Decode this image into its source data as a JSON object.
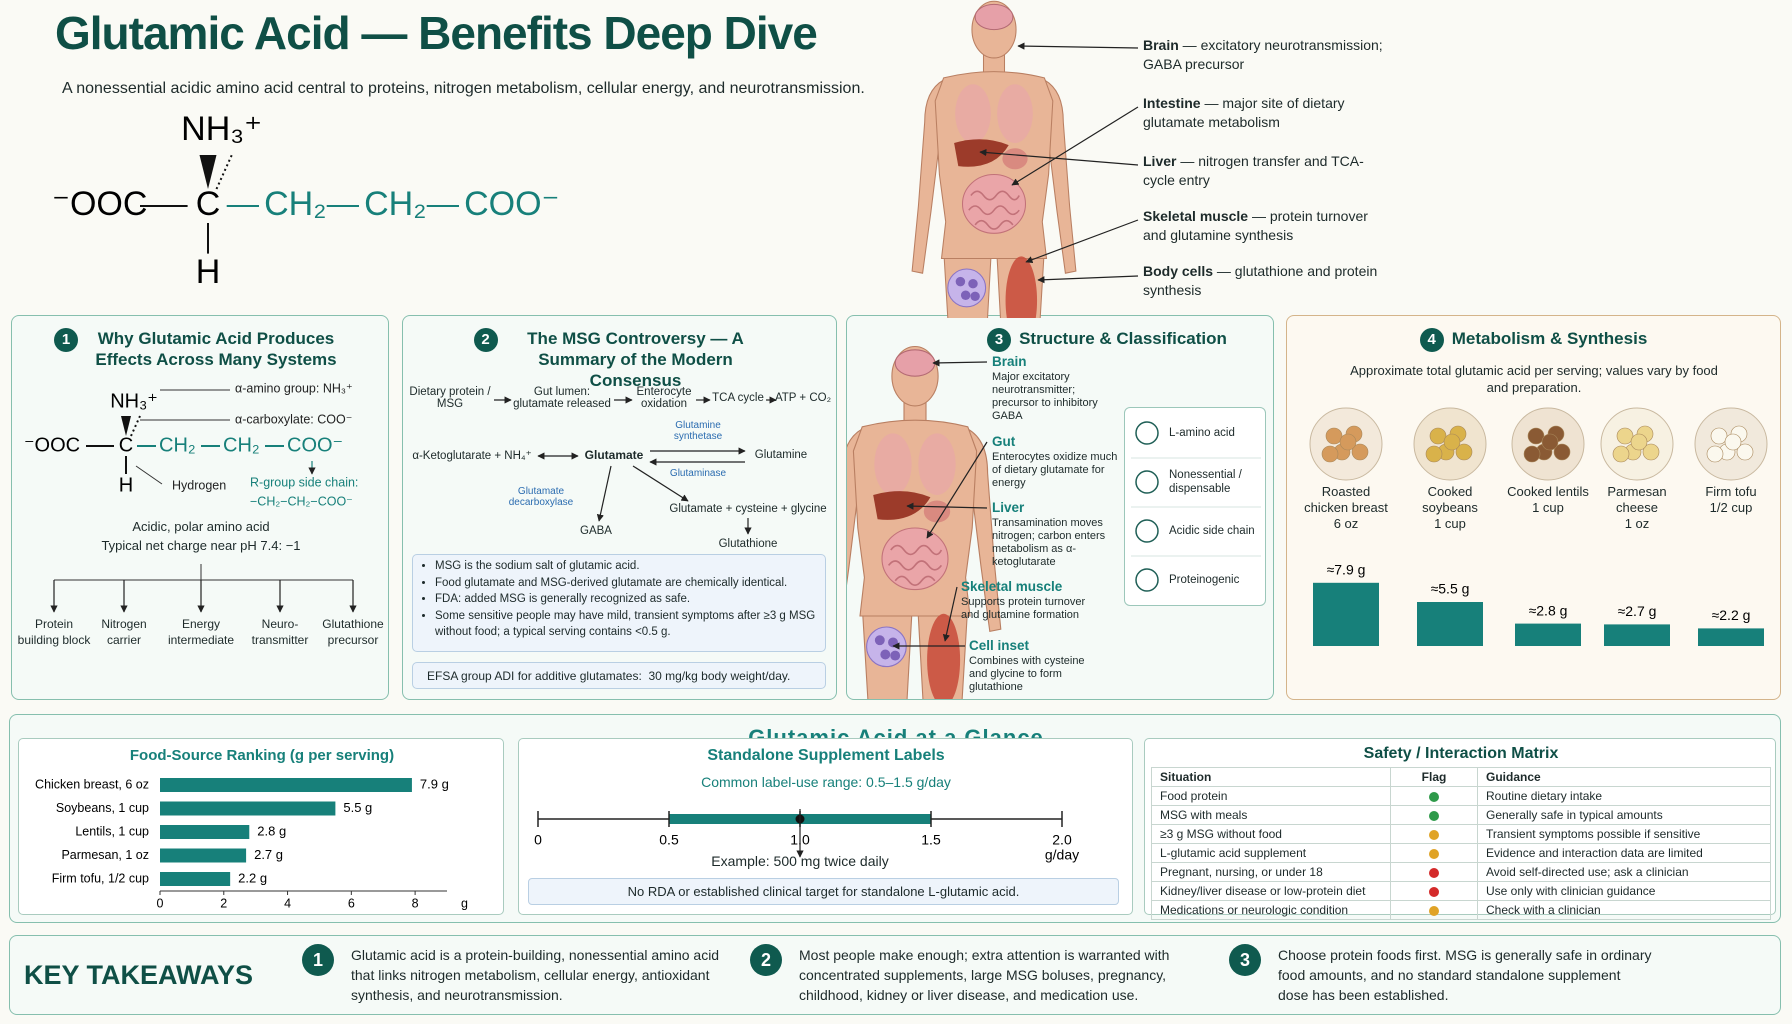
{
  "header": {
    "title": "Glutamic Acid — Benefits Deep Dive",
    "subtitle": "A nonessential acidic amino acid central to proteins, nitrogen metabolism, cellular energy, and neurotransmission."
  },
  "structure": {
    "carboxylate": "⁻OOC",
    "alpha_carbon": "C",
    "amino": "NH₃⁺",
    "hydrogen": "H",
    "chain": [
      "CH₂",
      "CH₂",
      "COO⁻"
    ]
  },
  "organs": [
    {
      "name": "Brain",
      "desc": "— excitatory neurotransmission; GABA precursor"
    },
    {
      "name": "Intestine",
      "desc": "— major site of dietary glutamate metabolism"
    },
    {
      "name": "Liver",
      "desc": "— nitrogen transfer and TCA-cycle entry"
    },
    {
      "name": "Skeletal muscle",
      "desc": "— protein turnover and glutamine synthesis"
    },
    {
      "name": "Body cells",
      "desc": "— glutathione and protein synthesis"
    }
  ],
  "panel1": {
    "number": "1",
    "title": "Why Glutamic Acid Produces Effects Across Many Systems",
    "structure": {
      "carboxylate": "⁻OOC",
      "alpha_carbon": "C",
      "amino": "NH₃⁺",
      "hydrogen": "H",
      "chain": [
        "CH₂",
        "CH₂",
        "COO⁻"
      ]
    },
    "annotations": {
      "amino": "α-amino group: NH₃⁺",
      "carboxylate": "α-carboxylate: COO⁻",
      "hydrogen": "Hydrogen",
      "side_chain": "R-group side chain:",
      "side_chain_formula": "−CH₂−CH₂−COO⁻"
    },
    "summary": [
      "Acidic, polar amino acid",
      "Typical net charge near pH 7.4: −1"
    ],
    "roles": [
      "Protein building block",
      "Nitrogen carrier",
      "Energy intermediate",
      "Neuro-transmitter",
      "Glutathione precursor"
    ]
  },
  "panel2": {
    "number": "2",
    "title": "The MSG Controversy — A Summary of the Modern Consensus",
    "flow": {
      "dietary": "Dietary protein / MSG",
      "gut": "Gut lumen: glutamate released",
      "enterocyte": "Enterocyte oxidation",
      "tca": "TCA cycle",
      "atp": "ATP + CO₂",
      "akg": "α-Ketoglutarate + NH₄⁺",
      "glutamate": "Glutamate",
      "glutamine": "Glutamine",
      "synthetase": "Glutamine synthetase",
      "glutaminase": "Glutaminase",
      "decarboxylase": "Glutamate decarboxylase",
      "gaba": "GABA",
      "precursors": "Glutamate + cysteine + glycine",
      "glutathione": "Glutathione"
    },
    "bullets": [
      "MSG is the sodium salt of glutamic acid.",
      "Food glutamate and MSG-derived glutamate are chemically identical.",
      "FDA: added MSG is generally recognized as safe.",
      "Some sensitive people may have mild, transient symptoms after ≥3 g MSG without food; a typical serving contains <0.5 g."
    ],
    "footer": "EFSA group ADI for additive glutamates:  30 mg/kg body weight/day."
  },
  "panel3": {
    "number": "3",
    "title": "Structure & Classification",
    "organs": [
      {
        "name": "Brain",
        "desc": "Major excitatory neurotransmitter; precursor to inhibitory GABA"
      },
      {
        "name": "Gut",
        "desc": "Enterocytes oxidize much of dietary glutamate for energy"
      },
      {
        "name": "Liver",
        "desc": "Transamination moves nitrogen; carbon enters metabolism as α-ketoglutarate"
      },
      {
        "name": "Skeletal muscle",
        "desc": "Supports protein turnover and glutamine formation"
      },
      {
        "name": "Cell inset",
        "desc": "Combines with cysteine and glycine to form glutathione"
      }
    ],
    "classification": [
      "L-amino acid",
      "Nonessential / dispensable",
      "Acidic side chain",
      "Proteinogenic"
    ]
  },
  "panel4": {
    "number": "4",
    "title": "Metabolism & Synthesis",
    "subtitle": "Approximate total glutamic acid per serving; values vary by food and preparation.",
    "chart_data": {
      "type": "bar",
      "categories": [
        "Roasted chicken breast",
        "Cooked soybeans",
        "Cooked lentils",
        "Parmesan cheese",
        "Firm tofu"
      ],
      "servings": [
        "6 oz",
        "1 cup",
        "1 cup",
        "1 oz",
        "1/2 cup"
      ],
      "values": [
        7.9,
        5.5,
        2.8,
        2.7,
        2.2
      ],
      "value_labels": [
        "≈7.9 g",
        "≈5.5 g",
        "≈2.8 g",
        "≈2.7 g",
        "≈2.2 g"
      ],
      "color": "#17807a",
      "ylim": [
        0,
        8
      ]
    }
  },
  "glance": {
    "title": "Glutamic Acid at a Glance",
    "ranking": {
      "chart_data": {
        "type": "barh",
        "title": "Food-Source Ranking (g per serving)",
        "categories": [
          "Chicken breast, 6 oz",
          "Soybeans, 1 cup",
          "Lentils, 1 cup",
          "Parmesan, 1 oz",
          "Firm tofu, 1/2 cup"
        ],
        "values": [
          7.9,
          5.5,
          2.8,
          2.7,
          2.2
        ],
        "value_labels": [
          "7.9 g",
          "5.5 g",
          "2.8 g",
          "2.7 g",
          "2.2 g"
        ],
        "color": "#17807a",
        "xlim": [
          0,
          9
        ],
        "xticks": [
          0,
          2,
          4,
          6,
          8
        ],
        "xlabel": "g"
      }
    },
    "supplement": {
      "title": "Standalone Supplement Labels",
      "range_label": "Common label-use range: 0.5–1.5 g/day",
      "range": [
        0.5,
        1.5
      ],
      "example_dose": 1,
      "color": "#17807a",
      "xlim": [
        0,
        2
      ],
      "xticks": [
        0,
        0.5,
        {
          "value": 1,
          "label": "1.0"
        },
        1.5,
        {
          "value": 2,
          "label": "2.0"
        }
      ],
      "xlabel": "g/day",
      "example": "Example: 500 mg twice daily",
      "note": "No RDA or established clinical target for standalone L-glutamic acid."
    },
    "safety": {
      "title": "Safety / Interaction Matrix",
      "columns": [
        "Situation",
        "Flag",
        "Guidance"
      ],
      "rows": [
        {
          "situation": "Food protein",
          "flag": "#2e9a4a",
          "guidance": "Routine dietary intake"
        },
        {
          "situation": "MSG with meals",
          "flag": "#2e9a4a",
          "guidance": "Generally safe in typical amounts"
        },
        {
          "situation": "≥3 g MSG without food",
          "flag": "#e0a326",
          "guidance": "Transient symptoms possible if sensitive"
        },
        {
          "situation": "L-glutamic acid supplement",
          "flag": "#e0a326",
          "guidance": "Evidence and interaction data are limited"
        },
        {
          "situation": "Pregnant, nursing, or under 18",
          "flag": "#d42a2a",
          "guidance": "Avoid self-directed use; ask a clinician"
        },
        {
          "situation": "Kidney/liver disease or low-protein diet",
          "flag": "#d42a2a",
          "guidance": "Use only with clinician guidance"
        },
        {
          "situation": "Medications or neurologic condition",
          "flag": "#e0a326",
          "guidance": "Check with a clinician"
        }
      ]
    }
  },
  "takeaways": {
    "title": "KEY TAKEAWAYS",
    "items": [
      {
        "number": "1",
        "text": "Glutamic acid is a protein-building, nonessential amino acid that links nitrogen metabolism, cellular energy, antioxidant synthesis, and neurotransmission."
      },
      {
        "number": "2",
        "text": "Most people make enough; extra attention is warranted with concentrated supplements, large MSG boluses, pregnancy, childhood, kidney or liver disease, and medication use."
      },
      {
        "number": "3",
        "text": "Choose protein foods first.  MSG is generally safe in ordinary food amounts, and no standard standalone supplement dose has been established."
      }
    ]
  }
}
